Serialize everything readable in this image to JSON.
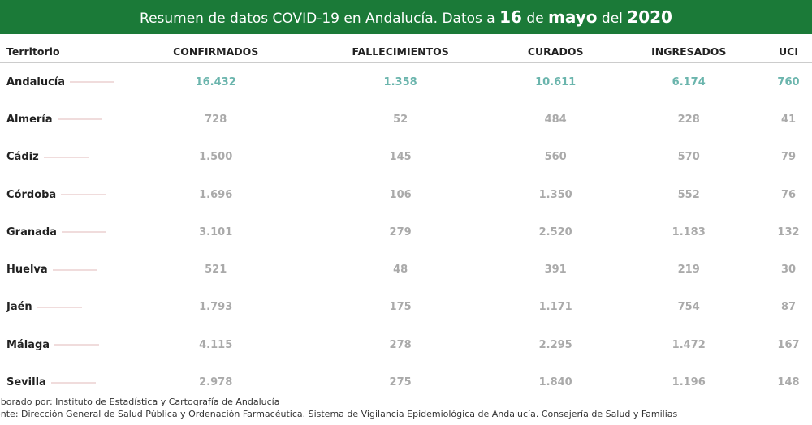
{
  "header": {
    "prefix": "Resumen de datos COVID-19 en Andalucía. Datos a ",
    "day": "16",
    "de": " de ",
    "month": "mayo",
    "del": " del ",
    "year": "2020"
  },
  "columns": [
    "Territorio",
    "CONFIRMADOS",
    "FALLECIMIENTOS",
    "CURADOS",
    "INGRESADOS",
    "UCI"
  ],
  "rows": [
    [
      "Andalucía",
      "16.432",
      "1.358",
      "10.611",
      "6.174",
      "760"
    ],
    [
      "Almería",
      "728",
      "52",
      "484",
      "228",
      "41"
    ],
    [
      "Cádiz",
      "1.500",
      "145",
      "560",
      "570",
      "79"
    ],
    [
      "Córdoba",
      "1.696",
      "106",
      "1.350",
      "552",
      "76"
    ],
    [
      "Granada",
      "3.101",
      "279",
      "2.520",
      "1.183",
      "132"
    ],
    [
      "Huelva",
      "521",
      "48",
      "391",
      "219",
      "30"
    ],
    [
      "Jaén",
      "1.793",
      "175",
      "1.171",
      "754",
      "87"
    ],
    [
      "Málaga",
      "4.115",
      "278",
      "2.295",
      "1.472",
      "167"
    ],
    [
      "Sevilla",
      "2.978",
      "275",
      "1.840",
      "1.196",
      "148"
    ]
  ],
  "footer": [
    "aborado por: Instituto de Estadística y Cartografía de Andalucía",
    "ente: Dirección General de Salud Pública y Ordenación Farmacéutica. Sistema de Vigilancia Epidemiológica de Andalucía. Consejería de Salud y Familias"
  ],
  "colors": {
    "header": "#1b7a38",
    "total": "#6bb5ad"
  }
}
